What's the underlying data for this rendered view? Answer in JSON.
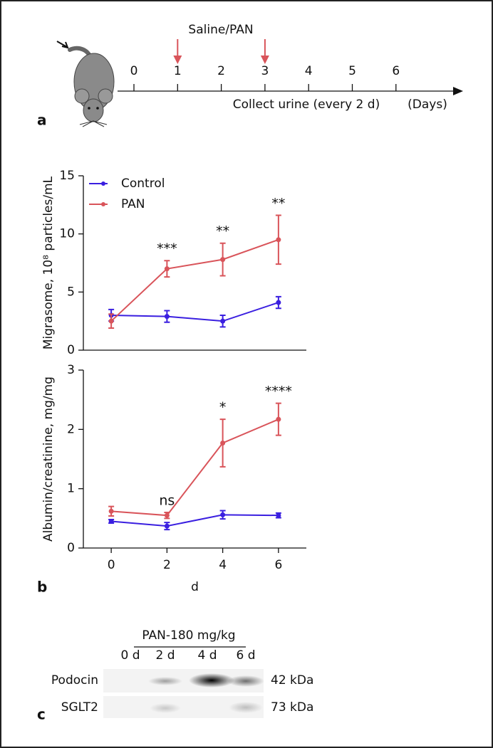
{
  "panels": [
    "a",
    "b",
    "c"
  ],
  "timeline": {
    "label": "Saline/PAN",
    "ticks": [
      0,
      1,
      2,
      3,
      4,
      5,
      6
    ],
    "arrows_at": [
      1,
      3
    ],
    "caption": "Collect urine (every 2 d)",
    "unit": "(Days)"
  },
  "chart_data": [
    {
      "type": "line",
      "ylabel": "Migrasome, 10⁸ particles/mL",
      "x": [
        0,
        2,
        4,
        6
      ],
      "xlim": [
        -1,
        7
      ],
      "ylim": [
        0,
        15
      ],
      "yticks": [
        0,
        5,
        10,
        15
      ],
      "legend": "upper left",
      "series": [
        {
          "name": "Control",
          "color": "#3a1fe0",
          "values": [
            3.0,
            2.9,
            2.5,
            4.1
          ],
          "errors": [
            0.5,
            0.5,
            0.5,
            0.5
          ]
        },
        {
          "name": "PAN",
          "color": "#d9545a",
          "values": [
            2.5,
            7.0,
            7.8,
            9.5
          ],
          "errors": [
            0.6,
            0.7,
            1.4,
            2.1
          ]
        }
      ],
      "annotations": [
        {
          "text": "***",
          "x": 2
        },
        {
          "text": "**",
          "x": 4
        },
        {
          "text": "**",
          "x": 6
        }
      ]
    },
    {
      "type": "line",
      "ylabel": "Albumin/creatinine, mg/mg",
      "xlabel": "d",
      "x": [
        0,
        2,
        4,
        6
      ],
      "xlim": [
        -1,
        7
      ],
      "xticks": [
        0,
        2,
        4,
        6
      ],
      "ylim": [
        0,
        3
      ],
      "yticks": [
        0,
        1,
        2,
        3
      ],
      "series": [
        {
          "color": "#3a1fe0",
          "values": [
            0.45,
            0.37,
            0.56,
            0.55
          ],
          "errors": [
            0.03,
            0.06,
            0.07,
            0.04
          ]
        },
        {
          "color": "#d9545a",
          "values": [
            0.62,
            0.55,
            1.77,
            2.17
          ],
          "errors": [
            0.08,
            0.05,
            0.4,
            0.27
          ]
        }
      ],
      "annotations": [
        {
          "text": "ns",
          "x": 2
        },
        {
          "text": "*",
          "x": 4
        },
        {
          "text": "****",
          "x": 6
        }
      ]
    }
  ],
  "blot": {
    "title": "PAN-180 mg/kg",
    "lanes": [
      "0 d",
      "2 d",
      "4 d",
      "6 d"
    ],
    "rows": [
      {
        "name": "Podocin",
        "size": "42 kDa"
      },
      {
        "name": "SGLT2",
        "size": "73 kDa"
      }
    ]
  }
}
